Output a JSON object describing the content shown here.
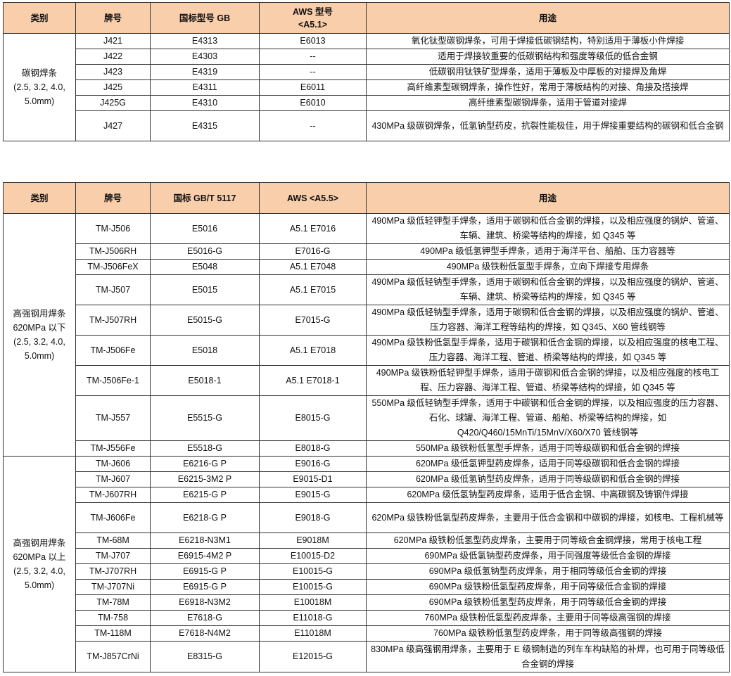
{
  "table1": {
    "headers": [
      "类别",
      "牌号",
      "国标型号  GB",
      "AWS  型号\n<A5.1>",
      "用途"
    ],
    "groups": [
      {
        "category": [
          "碳钢焊条",
          "(2.5, 3.2, 4.0,",
          "5.0mm)"
        ],
        "rows": [
          {
            "brand": "J421",
            "gb": "E4313",
            "aws": "E6013",
            "use": "氧化钛型碳钢焊条，可用于焊接低碳钢结构，特别适用于薄板小件焊接"
          },
          {
            "brand": "J422",
            "gb": "E4303",
            "aws": "--",
            "use": "适用于焊接较重要的低碳钢结构和强度等级低的低合金钢"
          },
          {
            "brand": "J423",
            "gb": "E4319",
            "aws": "--",
            "use": "低碳钢用钛铁矿型焊条，适用于薄板及中厚板的对接焊及角焊"
          },
          {
            "brand": "J425",
            "gb": "E4311",
            "aws": "E6011",
            "use": "高纤维素型碳钢焊条，操作性好，常用于薄板结构的对接、角接及搭接焊"
          },
          {
            "brand": "J425G",
            "gb": "E4310",
            "aws": "E6010",
            "use": "高纤维素型碳钢焊条，适用于管道对接焊"
          },
          {
            "brand": "J427",
            "gb": "E4315",
            "aws": "--",
            "use": "430MPa 级碳钢焊条，低氢钠型药皮，抗裂性能极佳，用于焊接重要结构的碳钢和低合金钢"
          }
        ]
      }
    ]
  },
  "table2": {
    "headers": [
      "类别",
      "牌号",
      "国标 GB/T 5117",
      "AWS <A5.5>",
      "用途"
    ],
    "groups": [
      {
        "category": [
          "高强钢用焊条",
          "620MPa 以下",
          "(2.5, 3.2, 4.0,",
          "5.0mm)"
        ],
        "rows": [
          {
            "brand": "TM-J506",
            "gb": "E5016",
            "aws": "A5.1 E7016",
            "use": "490MPa 级低轻钾型手焊条，适用于碳钢和低合金钢的焊接，以及相应强度的锅炉、管道、车辆、建筑、桥梁等结构的焊接，如 Q345 等"
          },
          {
            "brand": "TM-J506RH",
            "gb": "E5016-G",
            "aws": "E7016-G",
            "use": "490MPa 级低氢钾型手焊条，适用于海洋平台、船舶、压力容器等"
          },
          {
            "brand": "TM-J506FeX",
            "gb": "E5048",
            "aws": "A5.1 E7048",
            "use": "490MPa 级铁粉低氢型手焊条，立向下焊接专用焊条"
          },
          {
            "brand": "TM-J507",
            "gb": "E5015",
            "aws": "A5.1 E7015",
            "use": "490MPa 级低轻钠型手焊条，适用于碳钢和低合金钢的焊接，以及相应强度的锅炉、管道、车辆、建筑、桥梁等结构的焊接，如 Q345 等"
          },
          {
            "brand": "TM-J507RH",
            "gb": "E5015-G",
            "aws": "E7015-G",
            "use": "490MPa 级低轻钠型手焊条，适用于碳钢和低合金钢的焊接，以及相应强度的锅炉、管道、压力容器、海洋工程等结构的焊接，如 Q345、X60 管线钢等"
          },
          {
            "brand": "TM-J506Fe",
            "gb": "E5018",
            "aws": "A5.1 E7018",
            "use": "490MPa 级铁粉低氢型手焊条，适用于碳钢和低合金钢的焊接，以及相应强度的核电工程、压力容器、海洋工程、管道、桥梁等结构的焊接，如 Q345 等"
          },
          {
            "brand": "TM-J506Fe-1",
            "gb": "E5018-1",
            "aws": "A5.1 E7018-1",
            "use": "490MPa 级铁粉低轻钾型手焊条，适用于碳钢和低合金钢的焊接，以及相应强度的核电工程、压力容器、海洋工程、管道、桥梁等结构的焊接，如 Q345 等"
          },
          {
            "brand": "TM-J557",
            "gb": "E5515-G",
            "aws": "E8015-G",
            "use": "550MPa 级低轻钠型手焊条，适用于中碳钢和低合金钢的焊接，以及相应强度的压力容器、石化、球罐、海洋工程、管道、船舶、桥梁等结构的焊接，如 Q420/Q460/15MnTi/15MnV/X60/X70 管线钢等"
          },
          {
            "brand": "TM-J556Fe",
            "gb": "E5518-G",
            "aws": "E8018-G",
            "use": "550MPa 级铁粉低氢型手焊条，适用于同等级碳钢和低合金钢的焊接"
          }
        ]
      },
      {
        "category": [
          "高强钢用焊条",
          "620MPa 以上",
          "(2.5, 3.2, 4.0,",
          "5.0mm)"
        ],
        "rows": [
          {
            "brand": "TM-J606",
            "gb": "E6216-G P",
            "aws": "E9016-G",
            "use": "620MPa 级低氢钾型药皮焊条，适用于同等级碳钢和低合金钢的焊接"
          },
          {
            "brand": "TM-J607",
            "gb": "E6215-3M2 P",
            "aws": "E9015-D1",
            "use": "620MPa 级低氢钠型药皮焊条，适用于同等级碳钢和低合金钢的焊接"
          },
          {
            "brand": "TM-J607RH",
            "gb": "E6215-G P",
            "aws": "E9015-G",
            "use": "620MPa 级低氢钠型药皮焊条，适用于低合金钢、中高碳钢及铸钢件焊接"
          },
          {
            "brand": "TM-J606Fe",
            "gb": "E6218-G P",
            "aws": "E9018-G",
            "use": "620MPa 级铁粉低氢型药皮焊条，主要用于低合金钢和中碳钢的焊接，如核电、工程机械等"
          },
          {
            "brand": "TM-68M",
            "gb": "E6218-N3M1",
            "aws": "E9018M",
            "use": "620MPa 级铁粉低氢型药皮焊条，主要用于同等级合金钢焊接，常用于核电工程"
          },
          {
            "brand": "TM-J707",
            "gb": "E6915-4M2 P",
            "aws": "E10015-D2",
            "use": "690MPa 级低氢钠型药皮焊条，用于同强度等级低合金钢的焊接"
          },
          {
            "brand": "TM-J707RH",
            "gb": "E6915-G P",
            "aws": "E10015-G",
            "use": "690MPa 级低氢钠型药皮焊条，用于相同等级低合金钢的焊接"
          },
          {
            "brand": "TM-J707Ni",
            "gb": "E6915-G P",
            "aws": "E10015-G",
            "use": "690MPa 级铁粉低氢型药皮焊条，用于同等级低合金钢的焊接"
          },
          {
            "brand": "TM-78M",
            "gb": "E6918-N3M2",
            "aws": "E10018M",
            "use": "690MPa 级铁粉低氢型药皮焊条，用于同等级低合金钢的焊接"
          },
          {
            "brand": "TM-758",
            "gb": "E7618-G",
            "aws": "E11018-G",
            "use": "760MPa 级铁粉低氢型药皮焊条，主要用于同等级高强钢的焊接"
          },
          {
            "brand": "TM-118M",
            "gb": "E7618-N4M2",
            "aws": "E11018M",
            "use": "760MPa 级铁粉低氢型药皮焊条，用于同等级高强钢的焊接"
          },
          {
            "brand": "TM-J857CrNi",
            "gb": "E8315-G",
            "aws": "E12015-G",
            "use": "830MPa 级高强钢用焊条，主要用于 E 级钢制造的列车车构缺陷的补焊，也可用于同等级低合金钢的焊接"
          }
        ]
      }
    ],
    "header_bg": "#f9ceab"
  }
}
